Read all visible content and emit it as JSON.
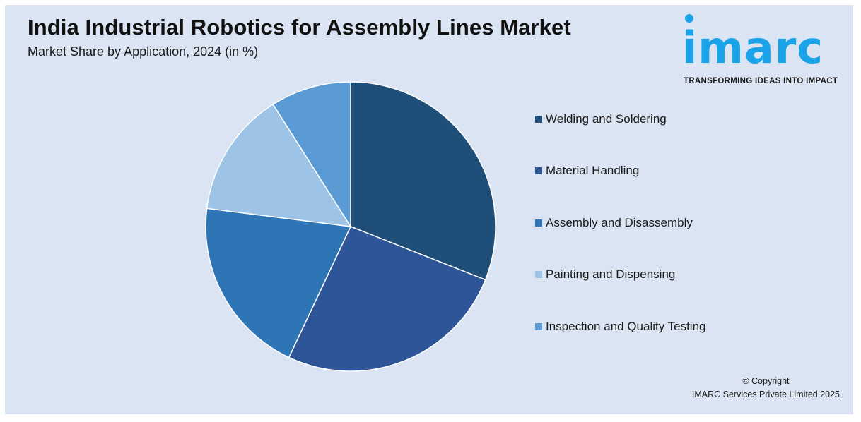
{
  "header": {
    "title": "India Industrial Robotics for Assembly Lines Market",
    "subtitle": "Market Share by Application, 2024 (in %)"
  },
  "logo": {
    "wordmark": "imarc",
    "tagline": "TRANSFORMING IDEAS INTO IMPACT",
    "color": "#1aa3e8"
  },
  "chart_data": {
    "type": "pie",
    "title": "India Industrial Robotics for Assembly Lines Market",
    "subtitle": "Market Share by Application, 2024 (in %)",
    "legend_position": "right",
    "start_angle_deg": 0,
    "direction": "clockwise",
    "slices": [
      {
        "label": "Welding and Soldering",
        "value": 31,
        "color": "#1f4e79"
      },
      {
        "label": "Material Handling",
        "value": 26,
        "color": "#2e5597"
      },
      {
        "label": "Assembly and Disassembly",
        "value": 20,
        "color": "#2e75b6"
      },
      {
        "label": "Painting and Dispensing",
        "value": 14,
        "color": "#9dc3e6"
      },
      {
        "label": "Inspection and Quality Testing",
        "value": 9,
        "color": "#5b9bd5"
      }
    ]
  },
  "footer": {
    "copyright_line1": "© Copyright",
    "copyright_line2": "IMARC Services Private Limited 2025"
  }
}
